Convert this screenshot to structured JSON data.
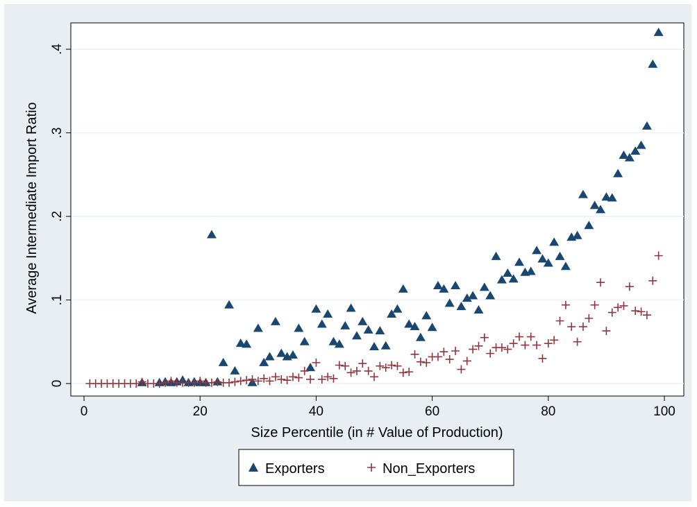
{
  "chart_data": {
    "type": "scatter",
    "title": "",
    "xlabel": "Size Percentile (in # Value of Production)",
    "ylabel": "Average Intermediate Import Ratio",
    "xlim": [
      0,
      100
    ],
    "ylim": [
      0,
      0.4
    ],
    "x_ticks": [
      0,
      20,
      40,
      60,
      80,
      100
    ],
    "x_tick_labels": [
      "0",
      "20",
      "40",
      "60",
      "80",
      "100"
    ],
    "y_ticks": [
      0,
      0.1,
      0.2,
      0.3,
      0.4
    ],
    "y_tick_labels": [
      "0",
      ".1",
      ".2",
      ".3",
      ".4"
    ],
    "grid": "horizontal",
    "legend_position": "bottom",
    "series": [
      {
        "name": "Exporters",
        "marker": "triangle",
        "color": "#1a476f",
        "points": [
          [
            10,
            0.001
          ],
          [
            13,
            0.001
          ],
          [
            14,
            0.002
          ],
          [
            15,
            0.001
          ],
          [
            16,
            0.002
          ],
          [
            17,
            0.004
          ],
          [
            18,
            0.001
          ],
          [
            19,
            0.002
          ],
          [
            20,
            0.001
          ],
          [
            21,
            0.001
          ],
          [
            22,
            0.178
          ],
          [
            23,
            0.002
          ],
          [
            24,
            0.025
          ],
          [
            25,
            0.094
          ],
          [
            26,
            0.015
          ],
          [
            27,
            0.048
          ],
          [
            28,
            0.047
          ],
          [
            29,
            0.001
          ],
          [
            30,
            0.066
          ],
          [
            31,
            0.025
          ],
          [
            32,
            0.032
          ],
          [
            33,
            0.074
          ],
          [
            34,
            0.036
          ],
          [
            35,
            0.032
          ],
          [
            36,
            0.034
          ],
          [
            37,
            0.066
          ],
          [
            38,
            0.05
          ],
          [
            39,
            0.019
          ],
          [
            40,
            0.089
          ],
          [
            41,
            0.071
          ],
          [
            42,
            0.083
          ],
          [
            43,
            0.05
          ],
          [
            44,
            0.047
          ],
          [
            45,
            0.069
          ],
          [
            46,
            0.09
          ],
          [
            47,
            0.057
          ],
          [
            48,
            0.074
          ],
          [
            49,
            0.064
          ],
          [
            50,
            0.044
          ],
          [
            51,
            0.063
          ],
          [
            52,
            0.045
          ],
          [
            53,
            0.083
          ],
          [
            54,
            0.089
          ],
          [
            55,
            0.113
          ],
          [
            56,
            0.071
          ],
          [
            57,
            0.068
          ],
          [
            58,
            0.055
          ],
          [
            59,
            0.081
          ],
          [
            60,
            0.067
          ],
          [
            61,
            0.117
          ],
          [
            62,
            0.113
          ],
          [
            63,
            0.096
          ],
          [
            64,
            0.117
          ],
          [
            65,
            0.092
          ],
          [
            66,
            0.102
          ],
          [
            67,
            0.105
          ],
          [
            68,
            0.088
          ],
          [
            69,
            0.115
          ],
          [
            70,
            0.105
          ],
          [
            71,
            0.152
          ],
          [
            72,
            0.124
          ],
          [
            73,
            0.132
          ],
          [
            74,
            0.125
          ],
          [
            75,
            0.145
          ],
          [
            76,
            0.133
          ],
          [
            77,
            0.134
          ],
          [
            78,
            0.159
          ],
          [
            79,
            0.149
          ],
          [
            80,
            0.144
          ],
          [
            81,
            0.169
          ],
          [
            82,
            0.152
          ],
          [
            83,
            0.14
          ],
          [
            84,
            0.175
          ],
          [
            85,
            0.177
          ],
          [
            86,
            0.226
          ],
          [
            87,
            0.189
          ],
          [
            88,
            0.213
          ],
          [
            89,
            0.208
          ],
          [
            90,
            0.223
          ],
          [
            91,
            0.222
          ],
          [
            92,
            0.251
          ],
          [
            93,
            0.273
          ],
          [
            94,
            0.27
          ],
          [
            95,
            0.278
          ],
          [
            96,
            0.285
          ],
          [
            97,
            0.308
          ],
          [
            98,
            0.382
          ],
          [
            99,
            0.42
          ]
        ]
      },
      {
        "name": "Non_Exporters",
        "marker": "plus",
        "color": "#90353b",
        "points": [
          [
            1,
            0
          ],
          [
            2,
            0
          ],
          [
            3,
            0
          ],
          [
            4,
            0
          ],
          [
            5,
            0
          ],
          [
            6,
            0
          ],
          [
            7,
            0
          ],
          [
            8,
            0
          ],
          [
            9,
            0
          ],
          [
            10,
            0.002
          ],
          [
            11,
            0
          ],
          [
            12,
            0
          ],
          [
            13,
            0
          ],
          [
            14,
            0.001
          ],
          [
            15,
            0.003
          ],
          [
            16,
            0.001
          ],
          [
            17,
            0.001
          ],
          [
            18,
            0.001
          ],
          [
            19,
            0.001
          ],
          [
            20,
            0.003
          ],
          [
            21,
            0.001
          ],
          [
            22,
            0.001
          ],
          [
            23,
            0.002
          ],
          [
            24,
            0.001
          ],
          [
            25,
            0.001
          ],
          [
            26,
            0.002
          ],
          [
            27,
            0.003
          ],
          [
            28,
            0.004
          ],
          [
            29,
            0.005
          ],
          [
            30,
            0.003
          ],
          [
            31,
            0.006
          ],
          [
            32,
            0.003
          ],
          [
            33,
            0.008
          ],
          [
            34,
            0.005
          ],
          [
            35,
            0.004
          ],
          [
            36,
            0.008
          ],
          [
            37,
            0.007
          ],
          [
            38,
            0.015
          ],
          [
            39,
            0.005
          ],
          [
            40,
            0.025
          ],
          [
            41,
            0.005
          ],
          [
            42,
            0.008
          ],
          [
            43,
            0.006
          ],
          [
            44,
            0.022
          ],
          [
            45,
            0.021
          ],
          [
            46,
            0.013
          ],
          [
            47,
            0.015
          ],
          [
            48,
            0.024
          ],
          [
            49,
            0.015
          ],
          [
            50,
            0.008
          ],
          [
            51,
            0.021
          ],
          [
            52,
            0.019
          ],
          [
            53,
            0.022
          ],
          [
            54,
            0.021
          ],
          [
            55,
            0.013
          ],
          [
            56,
            0.014
          ],
          [
            57,
            0.035
          ],
          [
            58,
            0.026
          ],
          [
            59,
            0.025
          ],
          [
            60,
            0.032
          ],
          [
            61,
            0.032
          ],
          [
            62,
            0.038
          ],
          [
            63,
            0.029
          ],
          [
            64,
            0.039
          ],
          [
            65,
            0.017
          ],
          [
            66,
            0.027
          ],
          [
            67,
            0.041
          ],
          [
            68,
            0.045
          ],
          [
            69,
            0.055
          ],
          [
            70,
            0.036
          ],
          [
            71,
            0.043
          ],
          [
            72,
            0.043
          ],
          [
            73,
            0.041
          ],
          [
            74,
            0.048
          ],
          [
            75,
            0.056
          ],
          [
            76,
            0.046
          ],
          [
            77,
            0.056
          ],
          [
            78,
            0.046
          ],
          [
            79,
            0.03
          ],
          [
            80,
            0.048
          ],
          [
            81,
            0.052
          ],
          [
            82,
            0.075
          ],
          [
            83,
            0.094
          ],
          [
            84,
            0.068
          ],
          [
            85,
            0.05
          ],
          [
            86,
            0.068
          ],
          [
            87,
            0.078
          ],
          [
            88,
            0.094
          ],
          [
            89,
            0.121
          ],
          [
            90,
            0.063
          ],
          [
            91,
            0.085
          ],
          [
            92,
            0.091
          ],
          [
            93,
            0.093
          ],
          [
            94,
            0.116
          ],
          [
            95,
            0.087
          ],
          [
            96,
            0.086
          ],
          [
            97,
            0.082
          ],
          [
            98,
            0.123
          ],
          [
            99,
            0.153
          ]
        ]
      }
    ]
  },
  "colors": {
    "background": "#e9eef2",
    "plot_background": "#ffffff",
    "gridline": "#eaf2f3",
    "exporters": "#1a476f",
    "non_exporters": "#90353b"
  }
}
